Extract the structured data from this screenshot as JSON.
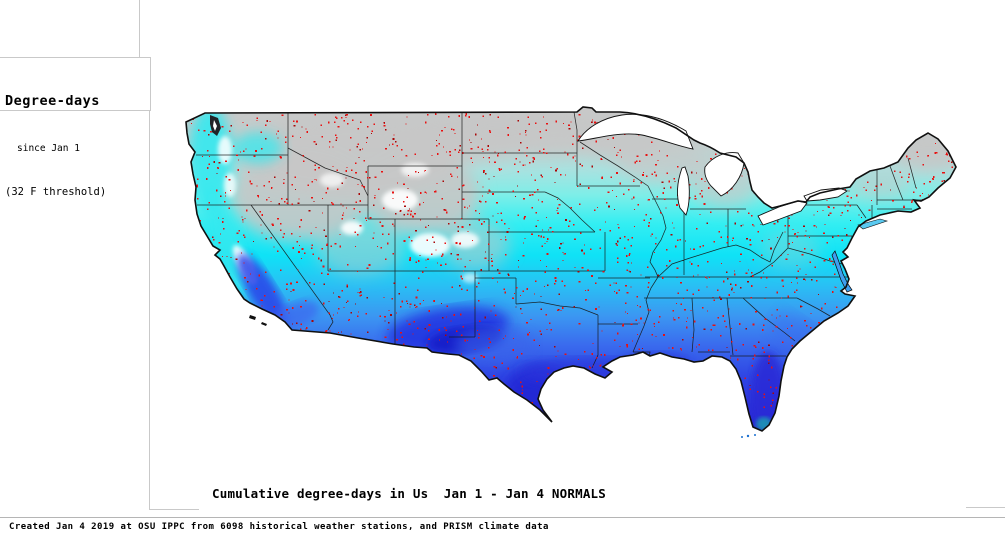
{
  "page": {
    "background": "#ffffff"
  },
  "legend": {
    "title": "Degree-days",
    "line1": "since Jan 1",
    "line2": "(32 F threshold)"
  },
  "map": {
    "caption": "Cumulative degree-days in Us  Jan 1 - Jan 4 NORMALS",
    "region": "Us",
    "period_start": "Jan 1",
    "period_end": "Jan 4",
    "series_type": "NORMALS",
    "threshold": "32 F",
    "station_dot_color": "#e81111",
    "state_border_color": "#161616",
    "coast_color": "#101010",
    "water_color": "#ffffff",
    "colors_north_to_south": [
      "#c9c9c9",
      "#c2cecd",
      "#a8e2e0",
      "#7deee8",
      "#33eef2",
      "#0fe2f6",
      "#28c2f4",
      "#3b97f2",
      "#3a6cee",
      "#2f46e4",
      "#2a2ed8",
      "#1d1dbd"
    ]
  },
  "footer": {
    "text": "Created Jan 4 2019 at OSU IPPC from 6098 historical weather stations, and PRISM climate data"
  },
  "chart_data": {
    "type": "heatmap",
    "title": "Cumulative degree-days in Us  Jan 1 - Jan 4 NORMALS",
    "subtitle": "Degree-days since Jan 1 (32 F threshold)",
    "stations": 6098,
    "created": "Jan 4 2019",
    "source": "OSU IPPC, PRISM climate data",
    "legend_position": "top-left",
    "value_gradient_north_to_south": [
      {
        "color": "#c9c9c9",
        "meaning": "fewest degree-days (northern states, 0)"
      },
      {
        "color": "#33eef2",
        "meaning": "moderate degree-days (central states)"
      },
      {
        "color": "#3b97f2",
        "meaning": "higher degree-days (southern mid-latitudes)"
      },
      {
        "color": "#2a2ed8",
        "meaning": "most degree-days (S. Arizona, S. Texas, Gulf coast, Florida)"
      }
    ]
  }
}
